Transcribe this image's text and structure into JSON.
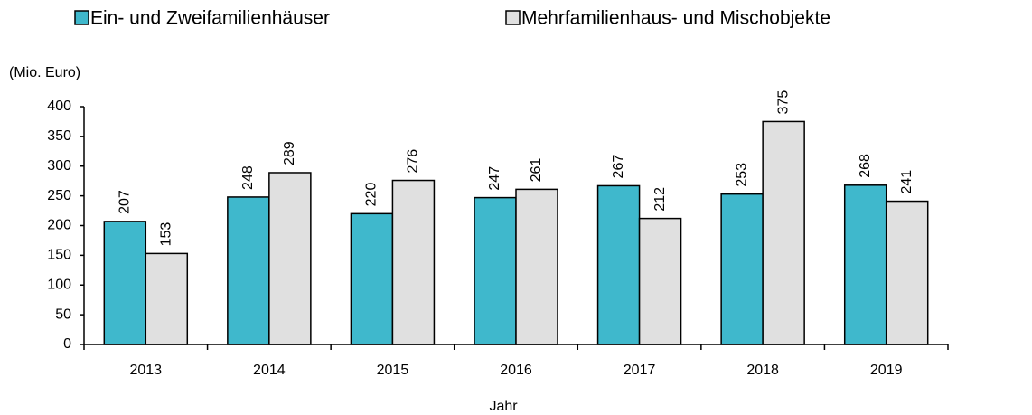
{
  "chart_data": {
    "type": "bar",
    "y_label": "(Mio. Euro)",
    "x_label": "Jahr",
    "categories": [
      "2013",
      "2014",
      "2015",
      "2016",
      "2017",
      "2018",
      "2019"
    ],
    "series": [
      {
        "name": "Ein- und Zweifamilienhäuser",
        "color": "#3fb8cc",
        "values": [
          207,
          248,
          220,
          247,
          267,
          253,
          268
        ]
      },
      {
        "name": "Mehrfamilienhaus- und Mischobjekte",
        "color": "#e0e0e0",
        "values": [
          153,
          289,
          276,
          261,
          212,
          375,
          241
        ]
      }
    ],
    "ylim": [
      0,
      400
    ],
    "yticks": [
      0,
      50,
      100,
      150,
      200,
      250,
      300,
      350,
      400
    ],
    "grid": false
  }
}
